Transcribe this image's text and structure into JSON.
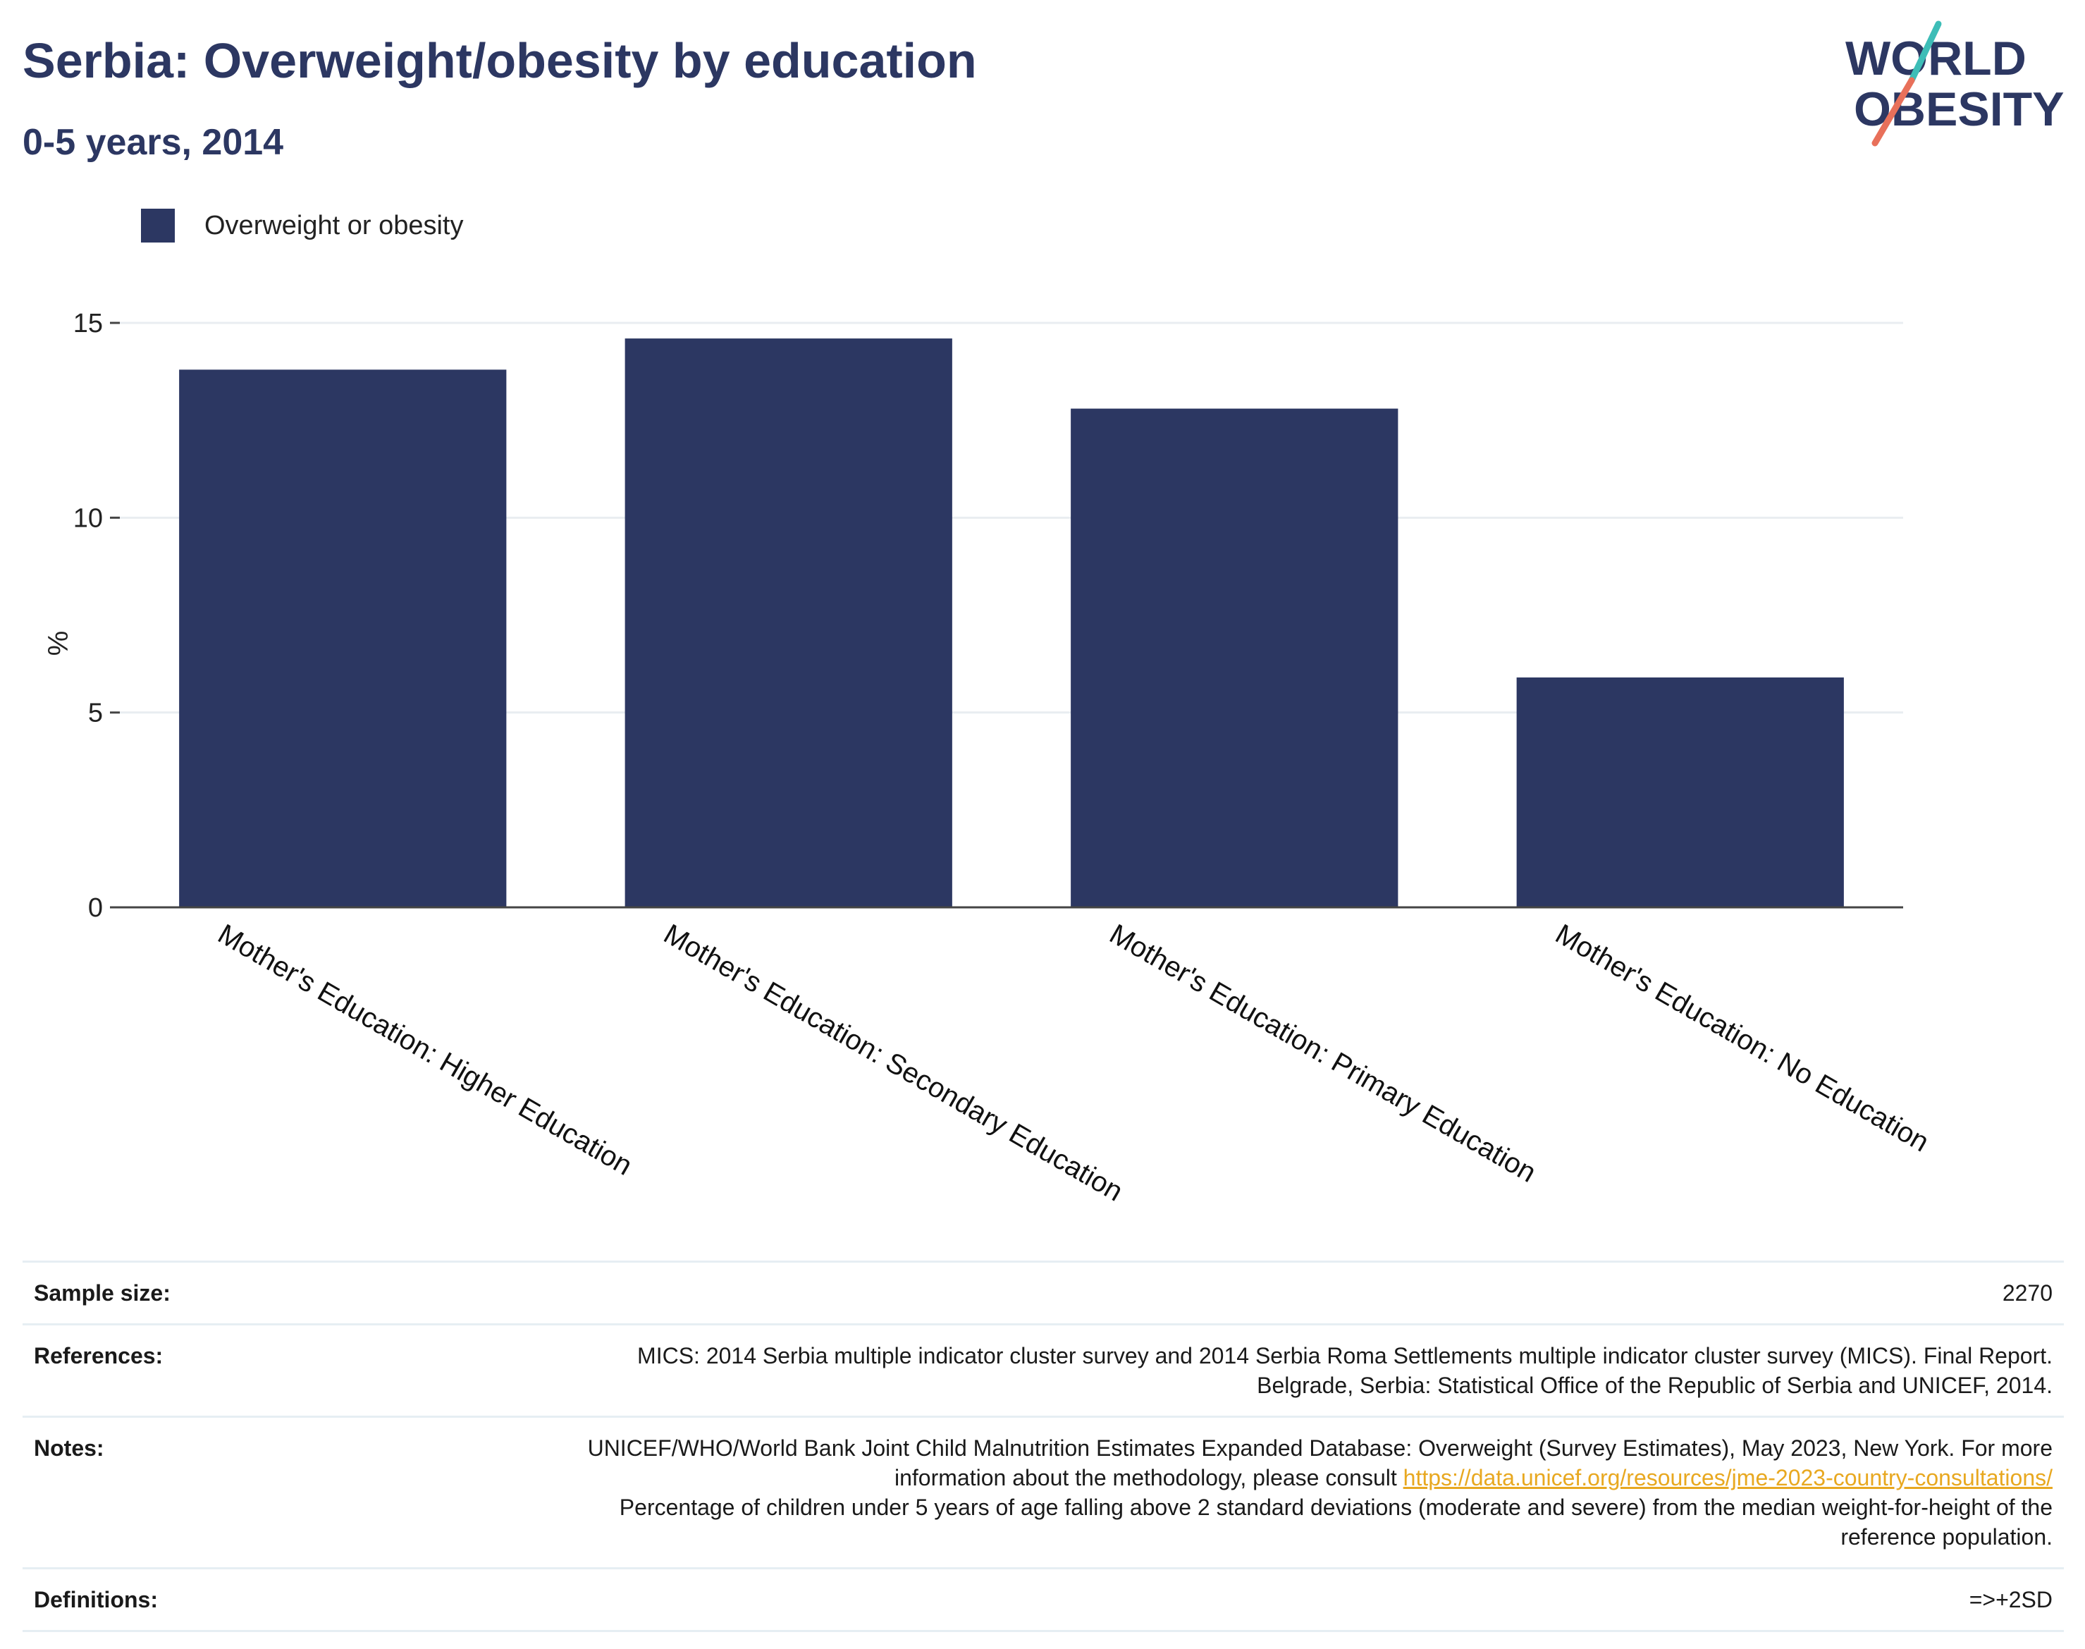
{
  "header": {
    "title": "Serbia: Overweight/obesity by education",
    "subtitle": "0-5 years, 2014"
  },
  "logo": {
    "line1": "WORLD",
    "line2": "OBESITY",
    "colors": {
      "text": "#2c3762",
      "slash_top": "#3dbdb7",
      "slash_bottom": "#e8705a"
    }
  },
  "legend": {
    "items": [
      {
        "label": "Overweight or obesity",
        "color": "#2c3762"
      }
    ]
  },
  "chart_data": {
    "type": "bar",
    "categories": [
      "Mother's Education: Higher Education",
      "Mother's Education: Secondary Education",
      "Mother's Education: Primary Education",
      "Mother's Education: No Education"
    ],
    "series": [
      {
        "name": "Overweight or obesity",
        "values": [
          13.8,
          14.6,
          12.8,
          5.9
        ],
        "color": "#2c3762"
      }
    ],
    "title": "Serbia: Overweight/obesity by education",
    "subtitle": "0-5 years, 2014",
    "xlabel": "",
    "ylabel": "%",
    "ylim": [
      0,
      15
    ],
    "yticks": [
      "0",
      "5",
      "10",
      "15"
    ],
    "ytick_values": [
      0,
      5,
      10,
      15
    ],
    "grid": true,
    "legend_position": "top-left"
  },
  "info": {
    "sample_size_label": "Sample size:",
    "sample_size_value": "2270",
    "references_label": "References:",
    "references_value": "MICS: 2014 Serbia multiple indicator cluster survey and 2014 Serbia Roma Settlements multiple indicator cluster survey (MICS). Final Report. Belgrade, Serbia: Statistical Office of the Republic of Serbia and UNICEF, 2014.",
    "notes_label": "Notes:",
    "notes_value_1": "UNICEF/WHO/World Bank Joint Child Malnutrition Estimates Expanded Database: Overweight (Survey Estimates), May 2023, New York. For more information about the methodology, please consult",
    "notes_link": "https://data.unicef.org/resources/jme-2023-country-consultations/",
    "notes_value_2": "Percentage of children under 5 years of age falling above 2 standard deviations (moderate and severe) from the median weight-for-height of the reference population.",
    "definitions_label": "Definitions:",
    "definitions_value": "=>+2SD"
  }
}
